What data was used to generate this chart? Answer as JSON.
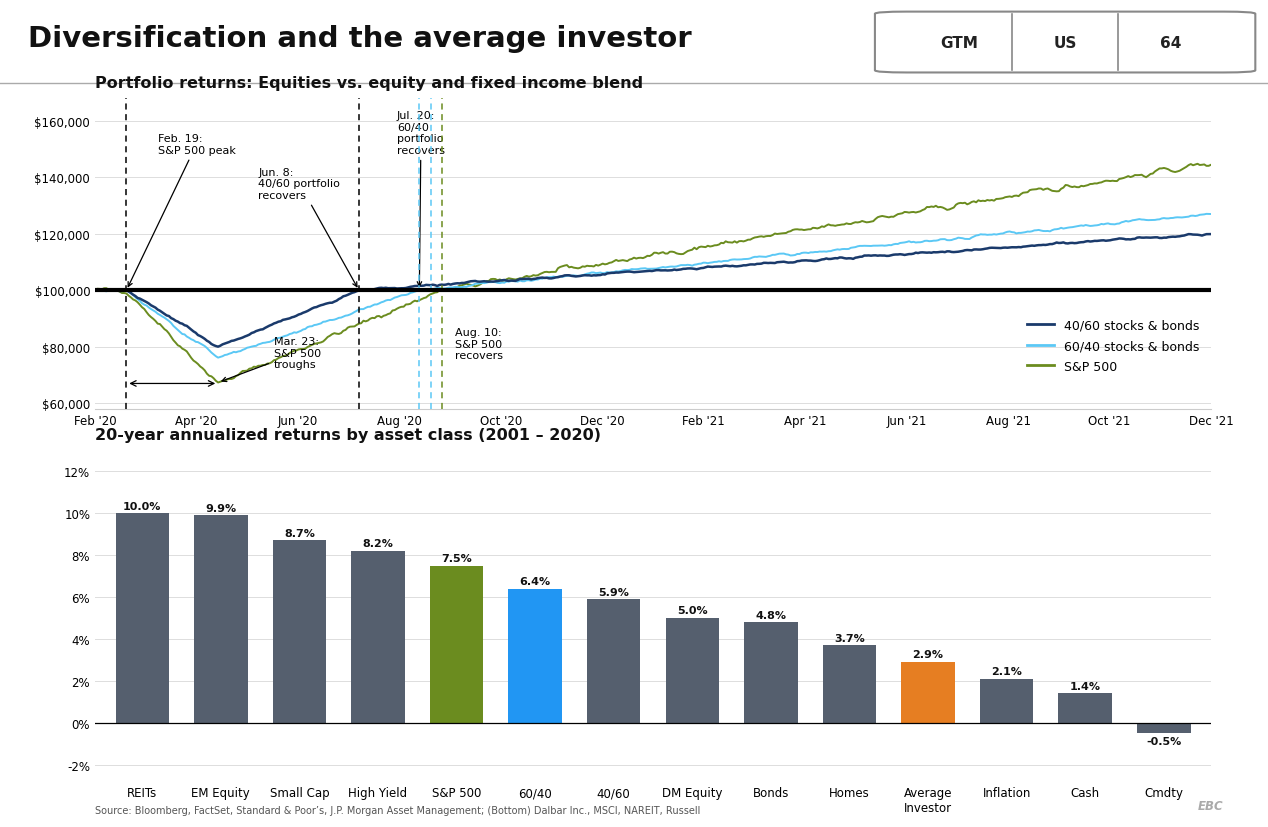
{
  "title": "Diversification and the average investor",
  "gtm_label": "GTM",
  "us_label": "US",
  "page_num": "64",
  "top_chart_title": "Portfolio returns: Equities vs. equity and fixed income blend",
  "bottom_chart_title": "20-year annualized returns by asset class (2001 – 2020)",
  "source_text": "Source: Bloomberg, FactSet, Standard & Poor’s, J.P. Morgan Asset Management; (Bottom) Dalbar Inc., MSCI, NAREIT, Russell",
  "line_chart": {
    "x_tick_labels": [
      "Feb '20",
      "Apr '20",
      "Jun '20",
      "Aug '20",
      "Oct '20",
      "Dec '20",
      "Feb '21",
      "Apr '21",
      "Jun '21",
      "Aug '21",
      "Oct '21",
      "Dec '21"
    ],
    "y_ticks": [
      60000,
      80000,
      100000,
      120000,
      140000,
      160000
    ],
    "color_4060": "#1a3a6b",
    "color_6040": "#5bc8f5",
    "color_sp500": "#6b8c1f",
    "legend": [
      "40/60 stocks & bonds",
      "60/40 stocks & bonds",
      "S&P 500"
    ]
  },
  "bar_chart": {
    "categories": [
      "REITs",
      "EM Equity",
      "Small Cap",
      "High Yield",
      "S&P 500",
      "60/40",
      "40/60",
      "DM Equity",
      "Bonds",
      "Homes",
      "Average\nInvestor",
      "Inflation",
      "Cash",
      "Cmdty"
    ],
    "values": [
      10.0,
      9.9,
      8.7,
      8.2,
      7.5,
      6.4,
      5.9,
      5.0,
      4.8,
      3.7,
      2.9,
      2.1,
      1.4,
      -0.5
    ],
    "colors": [
      "#555f6e",
      "#555f6e",
      "#555f6e",
      "#555f6e",
      "#6b8c1f",
      "#2196F3",
      "#555f6e",
      "#555f6e",
      "#555f6e",
      "#555f6e",
      "#E67E22",
      "#555f6e",
      "#555f6e",
      "#555f6e"
    ],
    "y_ticks": [
      -2,
      0,
      2,
      4,
      6,
      8,
      10,
      12
    ],
    "y_labels": [
      "-2%",
      "0%",
      "2%",
      "4%",
      "6%",
      "8%",
      "10%",
      "12%"
    ],
    "value_labels": [
      "10.0%",
      "9.9%",
      "8.7%",
      "8.2%",
      "7.5%",
      "6.4%",
      "5.9%",
      "5.0%",
      "4.8%",
      "3.7%",
      "2.9%",
      "2.1%",
      "1.4%",
      "-0.5%"
    ]
  },
  "background_color": "#ffffff"
}
